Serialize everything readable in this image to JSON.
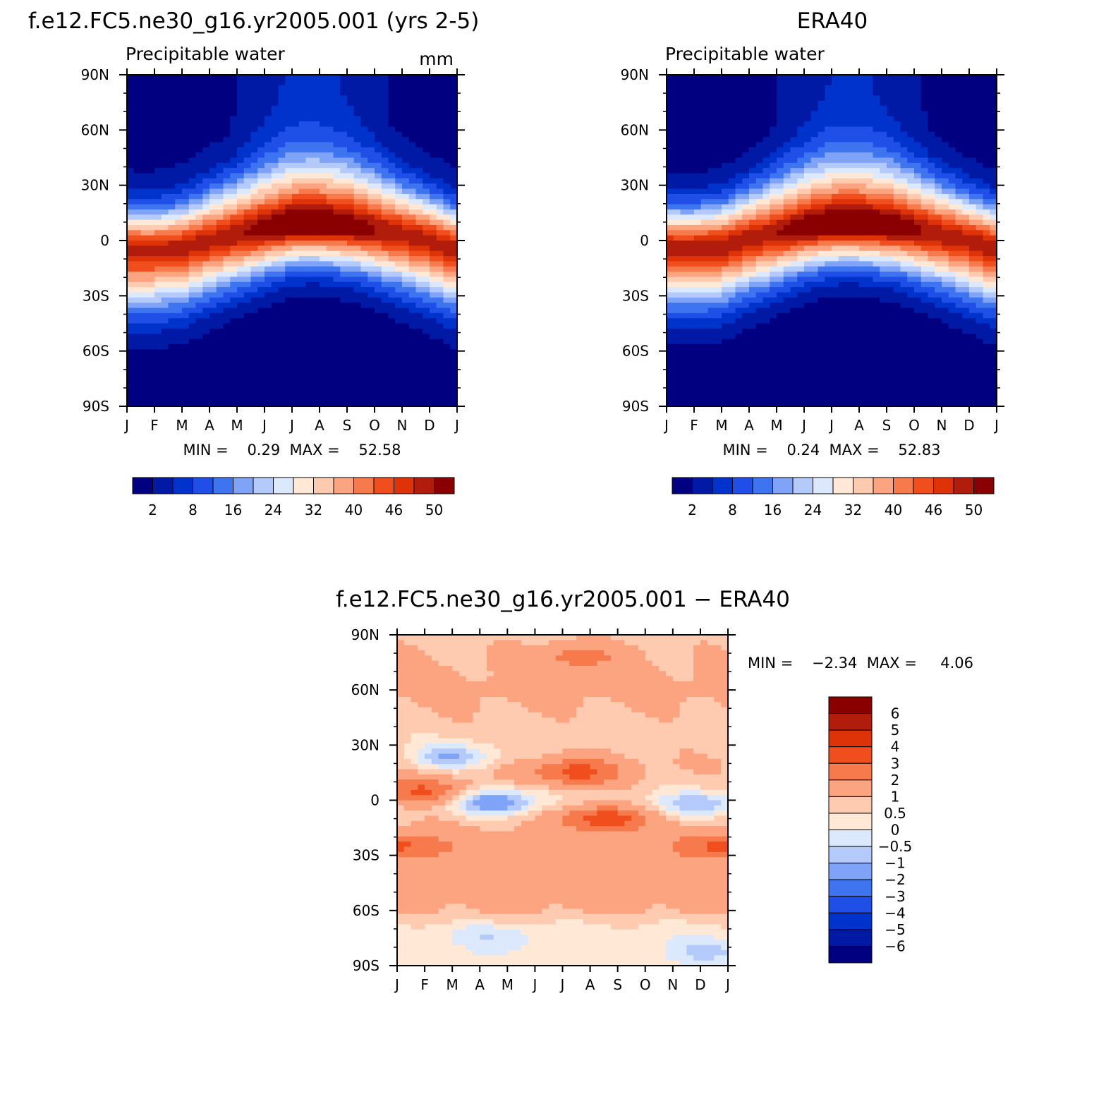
{
  "colors": {
    "abs_palette": [
      "#000080",
      "#001aa6",
      "#0033cc",
      "#1f4fe6",
      "#3f74f0",
      "#7fa3f7",
      "#b3cafa",
      "#dce9fd",
      "#ffe8d6",
      "#ffcbb0",
      "#fca37f",
      "#f67a4c",
      "#f04e1c",
      "#de3209",
      "#b11d0a",
      "#8a0000"
    ],
    "diff_palette": [
      "#8a0000",
      "#b11d0a",
      "#de3209",
      "#f04e1c",
      "#f67a4c",
      "#fca37f",
      "#ffcbb0",
      "#ffe8d6",
      "#dce9fd",
      "#b3cafa",
      "#7fa3f7",
      "#3f74f0",
      "#1f4fe6",
      "#0033cc",
      "#001aa6",
      "#000080"
    ]
  },
  "chart_data": [
    {
      "type": "heatmap",
      "title": "f.e12.FC5.ne30_g16.yr2005.001 (yrs 2-5)",
      "subtitle": "Precipitable water",
      "units": "mm",
      "x_tick_labels": [
        "J",
        "F",
        "M",
        "A",
        "M",
        "J",
        "J",
        "A",
        "S",
        "O",
        "N",
        "D",
        "J"
      ],
      "y_tick_labels": [
        "90N",
        "60N",
        "30N",
        "0",
        "30S",
        "60S",
        "90S"
      ],
      "y_values": [
        90,
        60,
        30,
        0,
        -30,
        -60,
        -90
      ],
      "stats_text": "MIN =    0.29  MAX =    52.58",
      "min": 0.29,
      "max": 52.58,
      "colorbar_labels": [
        "2",
        "8",
        "16",
        "24",
        "32",
        "40",
        "46",
        "50"
      ],
      "field": {
        "ridge_lat_by_month": [
          -5,
          -5,
          -4,
          0,
          3,
          6,
          9,
          9,
          8,
          6,
          3,
          0,
          -5
        ],
        "peak_value": 52.58,
        "north_pole_value": 1.5,
        "south_pole_value": 0.5
      }
    },
    {
      "type": "heatmap",
      "title": "ERA40",
      "subtitle": "Precipitable water",
      "x_tick_labels": [
        "J",
        "F",
        "M",
        "A",
        "M",
        "J",
        "J",
        "A",
        "S",
        "O",
        "N",
        "D",
        "J"
      ],
      "y_tick_labels": [
        "90N",
        "60N",
        "30N",
        "0",
        "30S",
        "60S",
        "90S"
      ],
      "y_values": [
        90,
        60,
        30,
        0,
        -30,
        -60,
        -90
      ],
      "stats_text": "MIN =    0.24  MAX =    52.83",
      "min": 0.24,
      "max": 52.83,
      "colorbar_labels": [
        "2",
        "8",
        "16",
        "24",
        "32",
        "40",
        "46",
        "50"
      ],
      "field": {
        "ridge_lat_by_month": [
          -4,
          -4,
          -3,
          1,
          4,
          7,
          9,
          9,
          8,
          6,
          3,
          0,
          -4
        ],
        "peak_value": 52.83,
        "north_pole_value": 1.2,
        "south_pole_value": 0.4
      }
    },
    {
      "type": "heatmap",
      "title": "f.e12.FC5.ne30_g16.yr2005.001 − ERA40",
      "x_tick_labels": [
        "J",
        "F",
        "M",
        "A",
        "M",
        "J",
        "J",
        "A",
        "S",
        "O",
        "N",
        "D",
        "J"
      ],
      "y_tick_labels": [
        "90N",
        "60N",
        "30N",
        "0",
        "30S",
        "60S",
        "90S"
      ],
      "y_values": [
        90,
        60,
        30,
        0,
        -30,
        -60,
        -90
      ],
      "stats_text": "MIN =    −2.34  MAX =     4.06",
      "min": -2.34,
      "max": 4.06,
      "colorbar_labels": [
        "6",
        "5",
        "4",
        "3",
        "2",
        "1",
        "0.5",
        "0",
        "−0.5",
        "−1",
        "−2",
        "−3",
        "−4",
        "−5",
        "−6"
      ],
      "field": {
        "background_by_lat": [
          [
            90,
            0.8
          ],
          [
            60,
            1.2
          ],
          [
            35,
            0.7
          ],
          [
            20,
            1.0
          ],
          [
            0,
            0.6
          ],
          [
            -20,
            1.2
          ],
          [
            -40,
            1.4
          ],
          [
            -60,
            1.1
          ],
          [
            -70,
            0.3
          ],
          [
            -90,
            0.2
          ]
        ],
        "features": [
          {
            "month": 6.5,
            "lat": 78,
            "value": 1.5
          },
          {
            "month": 2.0,
            "lat": 24,
            "value": -1.9
          },
          {
            "month": 6.5,
            "lat": 15,
            "value": 2.6
          },
          {
            "month": 1.0,
            "lat": 5,
            "value": 2.4
          },
          {
            "month": 3.5,
            "lat": -1,
            "value": -2.3
          },
          {
            "month": 11.0,
            "lat": -2,
            "value": -1.6
          },
          {
            "month": 7.5,
            "lat": -10,
            "value": 2.8
          },
          {
            "month": 0.2,
            "lat": -25,
            "value": 2.0
          },
          {
            "month": 11.7,
            "lat": -25,
            "value": 2.2
          },
          {
            "month": 3.5,
            "lat": -75,
            "value": -0.7
          },
          {
            "month": 11.3,
            "lat": -82,
            "value": -0.9
          }
        ]
      }
    }
  ]
}
